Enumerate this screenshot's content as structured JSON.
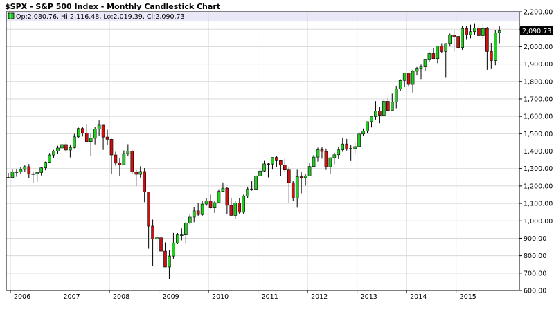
{
  "chart_data": {
    "type": "candlestick",
    "title": "$SPX - S&P 500 Index - Monthly Candlestick Chart",
    "legend_text": "Op:2,080.76, Hi:2,116.48, Lo:2,019.39, Cl:2,090.73",
    "last_value_label": "2,090.73",
    "y_axis": {
      "min": 600,
      "max": 2200,
      "ticks": [
        "2,200.00",
        "2,100.00",
        "2,000.00",
        "1,900.00",
        "1,800.00",
        "1,700.00",
        "1,600.00",
        "1,500.00",
        "1,400.00",
        "1,300.00",
        "1,200.00",
        "1,100.00",
        "1,000.00",
        "900.00",
        "800.00",
        "700.00",
        "600.00"
      ],
      "grid": true,
      "position": "right"
    },
    "x_axis": {
      "labels": [
        "2006",
        "2007",
        "2008",
        "2009",
        "2010",
        "2011",
        "2012",
        "2013",
        "2014",
        "2015"
      ]
    },
    "colors": {
      "up": "#22cc22",
      "down": "#cc1111",
      "outline": "#000000",
      "legend_band": "#e8e8f8"
    },
    "candles": [
      {
        "d": "2005-12",
        "o": 1249,
        "h": 1275,
        "l": 1246,
        "c": 1248
      },
      {
        "d": "2006-01",
        "o": 1248,
        "h": 1294,
        "l": 1245,
        "c": 1280
      },
      {
        "d": "2006-02",
        "o": 1280,
        "h": 1297,
        "l": 1253,
        "c": 1281
      },
      {
        "d": "2006-03",
        "o": 1281,
        "h": 1310,
        "l": 1268,
        "c": 1295
      },
      {
        "d": "2006-04",
        "o": 1295,
        "h": 1318,
        "l": 1280,
        "c": 1311
      },
      {
        "d": "2006-05",
        "o": 1311,
        "h": 1326,
        "l": 1245,
        "c": 1270
      },
      {
        "d": "2006-06",
        "o": 1270,
        "h": 1284,
        "l": 1219,
        "c": 1270
      },
      {
        "d": "2006-07",
        "o": 1270,
        "h": 1280,
        "l": 1224,
        "c": 1277
      },
      {
        "d": "2006-08",
        "o": 1277,
        "h": 1306,
        "l": 1260,
        "c": 1304
      },
      {
        "d": "2006-09",
        "o": 1304,
        "h": 1340,
        "l": 1290,
        "c": 1336
      },
      {
        "d": "2006-10",
        "o": 1336,
        "h": 1389,
        "l": 1331,
        "c": 1378
      },
      {
        "d": "2006-11",
        "o": 1378,
        "h": 1407,
        "l": 1360,
        "c": 1400
      },
      {
        "d": "2006-12",
        "o": 1400,
        "h": 1431,
        "l": 1385,
        "c": 1418
      },
      {
        "d": "2007-01",
        "o": 1418,
        "h": 1441,
        "l": 1403,
        "c": 1438
      },
      {
        "d": "2007-02",
        "o": 1438,
        "h": 1461,
        "l": 1390,
        "c": 1406
      },
      {
        "d": "2007-03",
        "o": 1406,
        "h": 1438,
        "l": 1364,
        "c": 1420
      },
      {
        "d": "2007-04",
        "o": 1420,
        "h": 1499,
        "l": 1416,
        "c": 1482
      },
      {
        "d": "2007-05",
        "o": 1482,
        "h": 1535,
        "l": 1476,
        "c": 1530
      },
      {
        "d": "2007-06",
        "o": 1530,
        "h": 1540,
        "l": 1484,
        "c": 1503
      },
      {
        "d": "2007-07",
        "o": 1503,
        "h": 1556,
        "l": 1454,
        "c": 1455
      },
      {
        "d": "2007-08",
        "o": 1455,
        "h": 1503,
        "l": 1370,
        "c": 1474
      },
      {
        "d": "2007-09",
        "o": 1474,
        "h": 1538,
        "l": 1439,
        "c": 1527
      },
      {
        "d": "2007-10",
        "o": 1527,
        "h": 1576,
        "l": 1489,
        "c": 1549
      },
      {
        "d": "2007-11",
        "o": 1549,
        "h": 1550,
        "l": 1407,
        "c": 1481
      },
      {
        "d": "2007-12",
        "o": 1481,
        "h": 1523,
        "l": 1435,
        "c": 1468
      },
      {
        "d": "2008-01",
        "o": 1468,
        "h": 1471,
        "l": 1270,
        "c": 1378
      },
      {
        "d": "2008-02",
        "o": 1378,
        "h": 1396,
        "l": 1316,
        "c": 1331
      },
      {
        "d": "2008-03",
        "o": 1331,
        "h": 1359,
        "l": 1257,
        "c": 1322
      },
      {
        "d": "2008-04",
        "o": 1322,
        "h": 1404,
        "l": 1320,
        "c": 1386
      },
      {
        "d": "2008-05",
        "o": 1386,
        "h": 1440,
        "l": 1373,
        "c": 1400
      },
      {
        "d": "2008-06",
        "o": 1400,
        "h": 1405,
        "l": 1272,
        "c": 1280
      },
      {
        "d": "2008-07",
        "o": 1280,
        "h": 1292,
        "l": 1200,
        "c": 1267
      },
      {
        "d": "2008-08",
        "o": 1267,
        "h": 1313,
        "l": 1248,
        "c": 1283
      },
      {
        "d": "2008-09",
        "o": 1283,
        "h": 1303,
        "l": 1107,
        "c": 1165
      },
      {
        "d": "2008-10",
        "o": 1165,
        "h": 1167,
        "l": 840,
        "c": 969
      },
      {
        "d": "2008-11",
        "o": 969,
        "h": 1007,
        "l": 741,
        "c": 896
      },
      {
        "d": "2008-12",
        "o": 896,
        "h": 918,
        "l": 815,
        "c": 903
      },
      {
        "d": "2009-01",
        "o": 903,
        "h": 943,
        "l": 805,
        "c": 826
      },
      {
        "d": "2009-02",
        "o": 826,
        "h": 876,
        "l": 735,
        "c": 735
      },
      {
        "d": "2009-03",
        "o": 735,
        "h": 832,
        "l": 667,
        "c": 798
      },
      {
        "d": "2009-04",
        "o": 798,
        "h": 930,
        "l": 783,
        "c": 873
      },
      {
        "d": "2009-05",
        "o": 873,
        "h": 930,
        "l": 866,
        "c": 919
      },
      {
        "d": "2009-06",
        "o": 919,
        "h": 956,
        "l": 888,
        "c": 919
      },
      {
        "d": "2009-07",
        "o": 919,
        "h": 993,
        "l": 869,
        "c": 987
      },
      {
        "d": "2009-08",
        "o": 987,
        "h": 1040,
        "l": 979,
        "c": 1021
      },
      {
        "d": "2009-09",
        "o": 1021,
        "h": 1080,
        "l": 992,
        "c": 1057
      },
      {
        "d": "2009-10",
        "o": 1057,
        "h": 1101,
        "l": 1029,
        "c": 1036
      },
      {
        "d": "2009-11",
        "o": 1036,
        "h": 1113,
        "l": 1029,
        "c": 1096
      },
      {
        "d": "2009-12",
        "o": 1096,
        "h": 1130,
        "l": 1086,
        "c": 1115
      },
      {
        "d": "2010-01",
        "o": 1115,
        "h": 1150,
        "l": 1071,
        "c": 1074
      },
      {
        "d": "2010-02",
        "o": 1074,
        "h": 1112,
        "l": 1045,
        "c": 1104
      },
      {
        "d": "2010-03",
        "o": 1104,
        "h": 1181,
        "l": 1101,
        "c": 1169
      },
      {
        "d": "2010-04",
        "o": 1169,
        "h": 1220,
        "l": 1164,
        "c": 1187
      },
      {
        "d": "2010-05",
        "o": 1187,
        "h": 1193,
        "l": 1040,
        "c": 1089
      },
      {
        "d": "2010-06",
        "o": 1089,
        "h": 1132,
        "l": 1028,
        "c": 1031
      },
      {
        "d": "2010-07",
        "o": 1031,
        "h": 1115,
        "l": 1011,
        "c": 1102
      },
      {
        "d": "2010-08",
        "o": 1102,
        "h": 1130,
        "l": 1040,
        "c": 1049
      },
      {
        "d": "2010-09",
        "o": 1049,
        "h": 1150,
        "l": 1040,
        "c": 1141
      },
      {
        "d": "2010-10",
        "o": 1141,
        "h": 1196,
        "l": 1131,
        "c": 1183
      },
      {
        "d": "2010-11",
        "o": 1183,
        "h": 1227,
        "l": 1173,
        "c": 1181
      },
      {
        "d": "2010-12",
        "o": 1181,
        "h": 1263,
        "l": 1181,
        "c": 1258
      },
      {
        "d": "2011-01",
        "o": 1258,
        "h": 1302,
        "l": 1256,
        "c": 1286
      },
      {
        "d": "2011-02",
        "o": 1286,
        "h": 1344,
        "l": 1283,
        "c": 1327
      },
      {
        "d": "2011-03",
        "o": 1327,
        "h": 1332,
        "l": 1249,
        "c": 1326
      },
      {
        "d": "2011-04",
        "o": 1326,
        "h": 1364,
        "l": 1294,
        "c": 1364
      },
      {
        "d": "2011-05",
        "o": 1364,
        "h": 1371,
        "l": 1311,
        "c": 1345
      },
      {
        "d": "2011-06",
        "o": 1345,
        "h": 1346,
        "l": 1258,
        "c": 1321
      },
      {
        "d": "2011-07",
        "o": 1321,
        "h": 1356,
        "l": 1282,
        "c": 1292
      },
      {
        "d": "2011-08",
        "o": 1292,
        "h": 1307,
        "l": 1101,
        "c": 1219
      },
      {
        "d": "2011-09",
        "o": 1219,
        "h": 1230,
        "l": 1114,
        "c": 1131
      },
      {
        "d": "2011-10",
        "o": 1131,
        "h": 1293,
        "l": 1075,
        "c": 1253
      },
      {
        "d": "2011-11",
        "o": 1253,
        "h": 1278,
        "l": 1158,
        "c": 1247
      },
      {
        "d": "2011-12",
        "o": 1247,
        "h": 1270,
        "l": 1202,
        "c": 1258
      },
      {
        "d": "2012-01",
        "o": 1258,
        "h": 1333,
        "l": 1258,
        "c": 1312
      },
      {
        "d": "2012-02",
        "o": 1312,
        "h": 1378,
        "l": 1312,
        "c": 1366
      },
      {
        "d": "2012-03",
        "o": 1366,
        "h": 1420,
        "l": 1340,
        "c": 1408
      },
      {
        "d": "2012-04",
        "o": 1408,
        "h": 1422,
        "l": 1357,
        "c": 1398
      },
      {
        "d": "2012-05",
        "o": 1398,
        "h": 1415,
        "l": 1292,
        "c": 1310
      },
      {
        "d": "2012-06",
        "o": 1310,
        "h": 1363,
        "l": 1267,
        "c": 1362
      },
      {
        "d": "2012-07",
        "o": 1362,
        "h": 1392,
        "l": 1325,
        "c": 1379
      },
      {
        "d": "2012-08",
        "o": 1379,
        "h": 1426,
        "l": 1355,
        "c": 1407
      },
      {
        "d": "2012-09",
        "o": 1407,
        "h": 1475,
        "l": 1396,
        "c": 1441
      },
      {
        "d": "2012-10",
        "o": 1441,
        "h": 1470,
        "l": 1403,
        "c": 1412
      },
      {
        "d": "2012-11",
        "o": 1412,
        "h": 1434,
        "l": 1343,
        "c": 1416
      },
      {
        "d": "2012-12",
        "o": 1416,
        "h": 1448,
        "l": 1385,
        "c": 1426
      },
      {
        "d": "2013-01",
        "o": 1426,
        "h": 1509,
        "l": 1426,
        "c": 1498
      },
      {
        "d": "2013-02",
        "o": 1498,
        "h": 1530,
        "l": 1485,
        "c": 1515
      },
      {
        "d": "2013-03",
        "o": 1515,
        "h": 1570,
        "l": 1501,
        "c": 1569
      },
      {
        "d": "2013-04",
        "o": 1569,
        "h": 1598,
        "l": 1536,
        "c": 1598
      },
      {
        "d": "2013-05",
        "o": 1598,
        "h": 1687,
        "l": 1581,
        "c": 1631
      },
      {
        "d": "2013-06",
        "o": 1631,
        "h": 1654,
        "l": 1560,
        "c": 1606
      },
      {
        "d": "2013-07",
        "o": 1606,
        "h": 1698,
        "l": 1604,
        "c": 1686
      },
      {
        "d": "2013-08",
        "o": 1686,
        "h": 1709,
        "l": 1627,
        "c": 1633
      },
      {
        "d": "2013-09",
        "o": 1633,
        "h": 1730,
        "l": 1633,
        "c": 1682
      },
      {
        "d": "2013-10",
        "o": 1682,
        "h": 1772,
        "l": 1646,
        "c": 1757
      },
      {
        "d": "2013-11",
        "o": 1757,
        "h": 1813,
        "l": 1746,
        "c": 1806
      },
      {
        "d": "2013-12",
        "o": 1806,
        "h": 1849,
        "l": 1767,
        "c": 1848
      },
      {
        "d": "2014-01",
        "o": 1848,
        "h": 1850,
        "l": 1770,
        "c": 1783
      },
      {
        "d": "2014-02",
        "o": 1783,
        "h": 1867,
        "l": 1737,
        "c": 1859
      },
      {
        "d": "2014-03",
        "o": 1859,
        "h": 1883,
        "l": 1834,
        "c": 1872
      },
      {
        "d": "2014-04",
        "o": 1872,
        "h": 1897,
        "l": 1814,
        "c": 1884
      },
      {
        "d": "2014-05",
        "o": 1884,
        "h": 1924,
        "l": 1862,
        "c": 1924
      },
      {
        "d": "2014-06",
        "o": 1924,
        "h": 1968,
        "l": 1915,
        "c": 1960
      },
      {
        "d": "2014-07",
        "o": 1960,
        "h": 1991,
        "l": 1930,
        "c": 1931
      },
      {
        "d": "2014-08",
        "o": 1931,
        "h": 2005,
        "l": 1905,
        "c": 2003
      },
      {
        "d": "2014-09",
        "o": 2003,
        "h": 2019,
        "l": 1964,
        "c": 1972
      },
      {
        "d": "2014-10",
        "o": 1972,
        "h": 2018,
        "l": 1821,
        "c": 2018
      },
      {
        "d": "2014-11",
        "o": 2018,
        "h": 2075,
        "l": 2001,
        "c": 2067
      },
      {
        "d": "2014-12",
        "o": 2067,
        "h": 2093,
        "l": 1972,
        "c": 2059
      },
      {
        "d": "2015-01",
        "o": 2059,
        "h": 2064,
        "l": 1988,
        "c": 1995
      },
      {
        "d": "2015-02",
        "o": 1995,
        "h": 2119,
        "l": 1980,
        "c": 2104
      },
      {
        "d": "2015-03",
        "o": 2104,
        "h": 2117,
        "l": 2039,
        "c": 2068
      },
      {
        "d": "2015-04",
        "o": 2068,
        "h": 2126,
        "l": 2048,
        "c": 2086
      },
      {
        "d": "2015-05",
        "o": 2086,
        "h": 2134,
        "l": 2067,
        "c": 2107
      },
      {
        "d": "2015-06",
        "o": 2107,
        "h": 2130,
        "l": 2056,
        "c": 2063
      },
      {
        "d": "2015-07",
        "o": 2063,
        "h": 2133,
        "l": 2044,
        "c": 2104
      },
      {
        "d": "2015-08",
        "o": 2104,
        "h": 2112,
        "l": 1867,
        "c": 1972
      },
      {
        "d": "2015-09",
        "o": 1972,
        "h": 2021,
        "l": 1871,
        "c": 1920
      },
      {
        "d": "2015-10",
        "o": 1920,
        "h": 2094,
        "l": 1893,
        "c": 2079
      },
      {
        "d": "2015-11",
        "o": 2080.76,
        "h": 2116.48,
        "l": 2019.39,
        "c": 2090.73
      }
    ]
  }
}
